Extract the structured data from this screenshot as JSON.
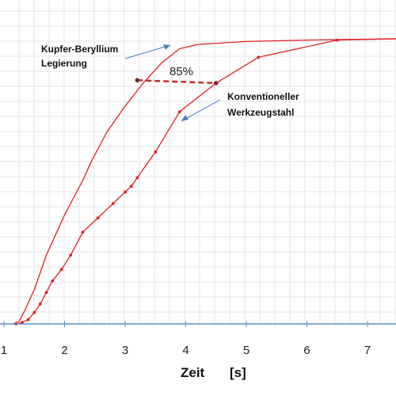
{
  "chart_data": {
    "type": "line",
    "title": "",
    "xlabel": "Zeit",
    "xunit": "[s]",
    "ylabel": "",
    "xlim": [
      1,
      7.6
    ],
    "x_ticks": [
      "1",
      "2",
      "3",
      "4",
      "5",
      "6",
      "7"
    ],
    "grid": true,
    "colors": {
      "series": "#e02020",
      "arrow": "#4f7fc0",
      "axis": "#5b8fd0"
    },
    "series": [
      {
        "name": "Kupfer-Beryllium Legierung",
        "markers": false,
        "points": [
          [
            1.15,
            0.0
          ],
          [
            1.25,
            0.01
          ],
          [
            1.35,
            0.05
          ],
          [
            1.5,
            0.12
          ],
          [
            1.7,
            0.24
          ],
          [
            2.0,
            0.38
          ],
          [
            2.3,
            0.5
          ],
          [
            2.45,
            0.57
          ],
          [
            2.7,
            0.67
          ],
          [
            3.0,
            0.76
          ],
          [
            3.3,
            0.84
          ],
          [
            3.6,
            0.91
          ],
          [
            3.9,
            0.96
          ],
          [
            4.2,
            0.975
          ],
          [
            5.0,
            0.985
          ],
          [
            6.0,
            0.99
          ],
          [
            7.6,
            0.995
          ]
        ]
      },
      {
        "name": "Konventioneller Werkzeugstahl",
        "markers": true,
        "points": [
          [
            1.2,
            0.0
          ],
          [
            1.3,
            0.005
          ],
          [
            1.4,
            0.015
          ],
          [
            1.5,
            0.04
          ],
          [
            1.6,
            0.07
          ],
          [
            1.7,
            0.11
          ],
          [
            1.8,
            0.15
          ],
          [
            1.95,
            0.19
          ],
          [
            2.1,
            0.24
          ],
          [
            2.3,
            0.32
          ],
          [
            2.55,
            0.37
          ],
          [
            2.8,
            0.42
          ],
          [
            3.0,
            0.46
          ],
          [
            3.1,
            0.48
          ],
          [
            3.2,
            0.51
          ],
          [
            3.5,
            0.6
          ],
          [
            3.9,
            0.74
          ],
          [
            4.5,
            0.84
          ],
          [
            5.2,
            0.93
          ],
          [
            6.5,
            0.99
          ],
          [
            7.6,
            0.995
          ]
        ]
      }
    ],
    "annotations": [
      {
        "text": "85%",
        "from": [
          3.2,
          0.85
        ],
        "to": [
          4.5,
          0.84
        ]
      }
    ]
  },
  "labels": {
    "cube_line1": "Kupfer-Beryllium",
    "cube_line2": "Legierung",
    "steel_line1": "Konventioneller",
    "steel_line2": "Werkzeugstahl",
    "pct": "85%",
    "xlabel_word": "Zeit",
    "xlabel_unit": "[s]"
  }
}
